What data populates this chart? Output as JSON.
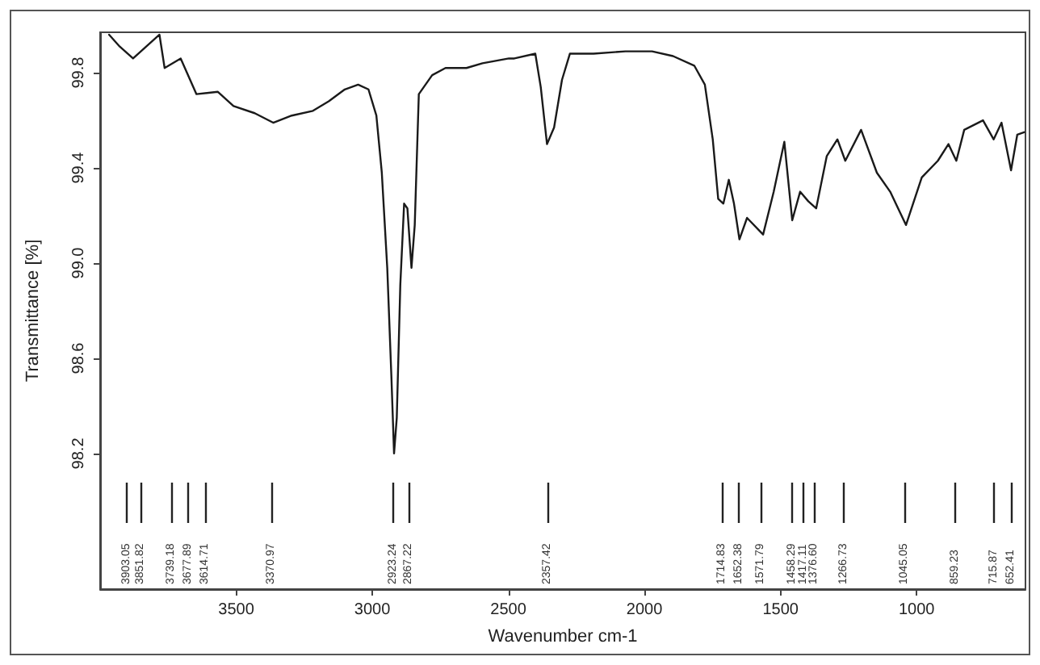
{
  "chart_data": {
    "type": "line",
    "xlabel": "Wavenumber cm-1",
    "ylabel": "Transmittance [%]",
    "xlim": [
      4000,
      600
    ],
    "xticks": [
      3500,
      3000,
      2500,
      2000,
      1500,
      1000
    ],
    "ylim": [
      97.63,
      99.97
    ],
    "yticks": [
      98.2,
      98.6,
      {
        "value": 99,
        "label": "99.0"
      },
      99.4,
      99.8
    ],
    "marker": "none",
    "line_style": "solid",
    "series": [
      {
        "color": "#1a1a1a",
        "x": [
          3967,
          3928,
          3879,
          3782,
          3763,
          3704,
          3646,
          3568,
          3510,
          3432,
          3364,
          3296,
          3218,
          3160,
          3101,
          3052,
          3014,
          2985,
          2965,
          2945,
          2930,
          2920,
          2910,
          2897,
          2883,
          2871,
          2856,
          2844,
          2829,
          2780,
          2731,
          2654,
          2595,
          2498,
          2478,
          2401,
          2381,
          2358,
          2332,
          2303,
          2274,
          2187,
          2070,
          1972,
          1895,
          1817,
          1778,
          1749,
          1729,
          1710,
          1690,
          1671,
          1651,
          1623,
          1564,
          1525,
          1486,
          1457,
          1428,
          1398,
          1369,
          1330,
          1291,
          1262,
          1204,
          1146,
          1097,
          1039,
          981,
          922,
          883,
          854,
          825,
          756,
          717,
          688,
          653,
          630,
          605
        ],
        "values": [
          99.96,
          99.91,
          99.86,
          99.96,
          99.82,
          99.86,
          99.71,
          99.72,
          99.66,
          99.63,
          99.59,
          99.62,
          99.64,
          99.68,
          99.73,
          99.75,
          99.73,
          99.62,
          99.38,
          98.98,
          98.53,
          98.2,
          98.35,
          98.91,
          99.25,
          99.23,
          98.98,
          99.16,
          99.71,
          99.79,
          99.82,
          99.82,
          99.84,
          99.86,
          99.86,
          99.88,
          99.74,
          99.5,
          99.57,
          99.77,
          99.88,
          99.88,
          99.89,
          99.89,
          99.87,
          99.83,
          99.75,
          99.52,
          99.27,
          99.25,
          99.35,
          99.25,
          99.1,
          99.19,
          99.12,
          99.3,
          99.51,
          99.18,
          99.3,
          99.26,
          99.23,
          99.45,
          99.52,
          99.43,
          99.56,
          99.38,
          99.3,
          99.16,
          99.36,
          99.43,
          99.5,
          99.43,
          99.56,
          99.6,
          99.52,
          99.59,
          99.39,
          99.54,
          99.55
        ]
      }
    ],
    "ref_lines": [
      {
        "axis": "x",
        "value": 3903.05,
        "label": "3903.05"
      },
      {
        "axis": "x",
        "value": 3851.82,
        "label": "3851.82"
      },
      {
        "axis": "x",
        "value": 3739.18,
        "label": "3739.18"
      },
      {
        "axis": "x",
        "value": 3677.89,
        "label": "3677.89"
      },
      {
        "axis": "x",
        "value": 3614.71,
        "label": "3614.71"
      },
      {
        "axis": "x",
        "value": 3370.97,
        "label": "3370.97"
      },
      {
        "axis": "x",
        "value": 2923.24,
        "label": "2923.24"
      },
      {
        "axis": "x",
        "value": 2867.22,
        "label": "2867.22"
      },
      {
        "axis": "x",
        "value": 2357.42,
        "label": "2357.42"
      },
      {
        "axis": "x",
        "value": 1714.83,
        "label": "1714.83"
      },
      {
        "axis": "x",
        "value": 1652.38,
        "label": "1652.38"
      },
      {
        "axis": "x",
        "value": 1571.79,
        "label": "1571.79"
      },
      {
        "axis": "x",
        "value": 1458.29,
        "label": "1458.29"
      },
      {
        "axis": "x",
        "value": 1417.11,
        "label": "1417.11"
      },
      {
        "axis": "x",
        "value": 1376.6,
        "label": "1376.60"
      },
      {
        "axis": "x",
        "value": 1266.73,
        "label": "1266.73"
      },
      {
        "axis": "x",
        "value": 1045.05,
        "label": "1045.05"
      },
      {
        "axis": "x",
        "value": 859.23,
        "label": "859.23"
      },
      {
        "axis": "x",
        "value": 715.87,
        "label": "715.87"
      },
      {
        "axis": "x",
        "value": 652.41,
        "label": "652.41"
      }
    ]
  }
}
